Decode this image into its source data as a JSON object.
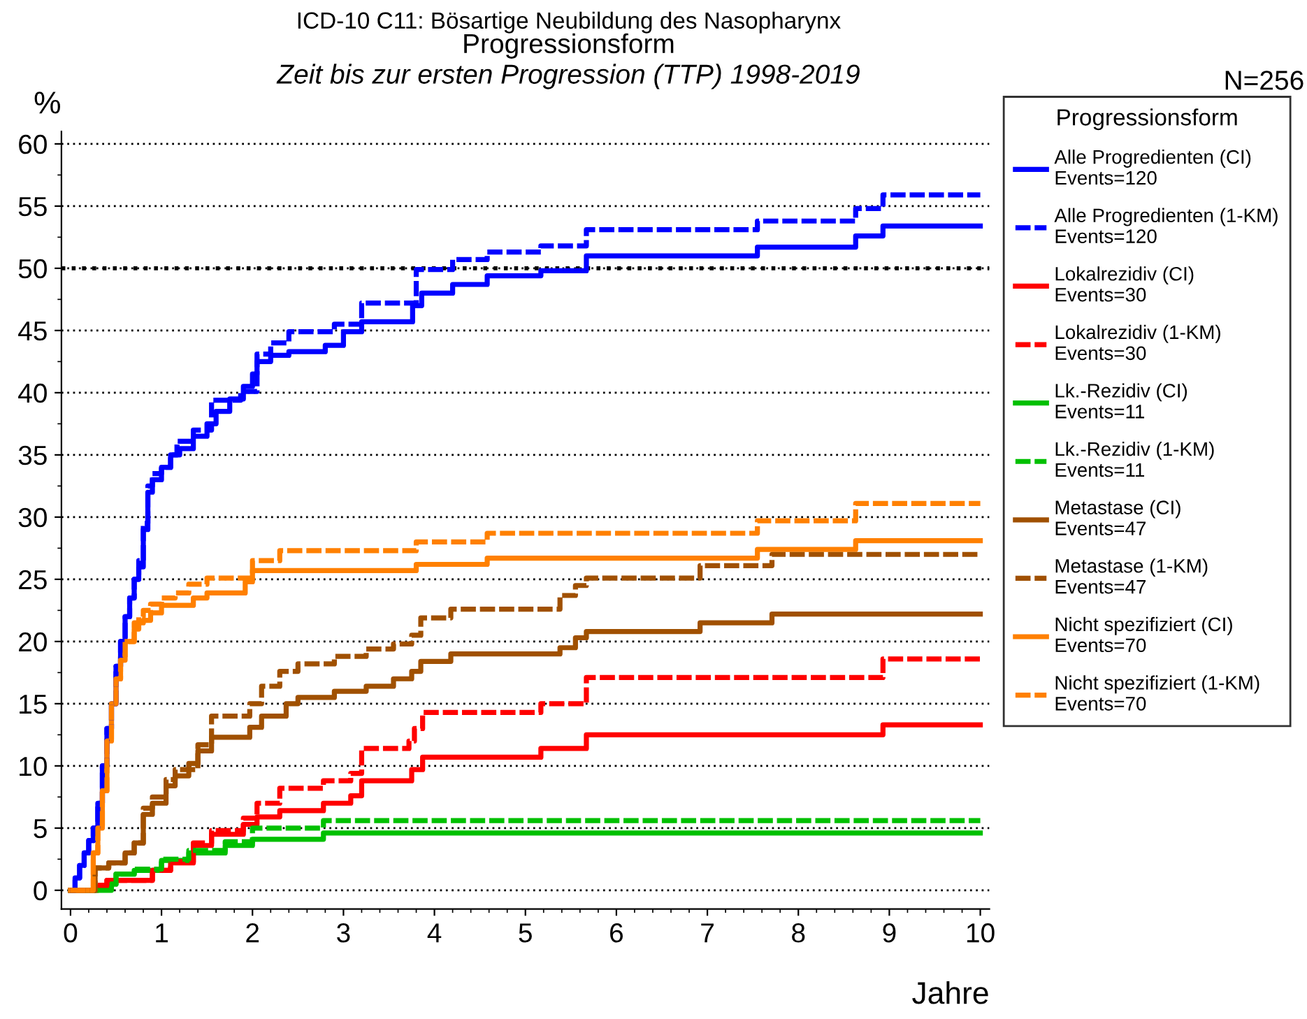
{
  "chart_data": {
    "type": "step",
    "title": "ICD-10 C11: Bösartige Neubildung des Nasopharynx",
    "subtitle": "Zeit bis zur ersten Progression (TTP) 1998-2019",
    "annotations": [
      "Progressionsform",
      "N=256"
    ],
    "xlabel": "Jahre",
    "ylabel": "%",
    "legend_title": "Progressionsform",
    "legend": "right",
    "grid": "y",
    "xlim": [
      -0.1,
      10.1
    ],
    "ylim": [
      -1.5,
      61
    ],
    "xticks": [
      0,
      1,
      2,
      3,
      4,
      5,
      6,
      7,
      8,
      9,
      10
    ],
    "yticks": [
      0,
      5,
      10,
      15,
      20,
      25,
      30,
      35,
      40,
      45,
      50,
      55,
      60
    ],
    "ref_lines": [
      {
        "axis": "y",
        "value": 50,
        "color": "#000000",
        "line_style": "dotted"
      }
    ],
    "series": [
      {
        "name": "Alle Progredienten (CI)\nEvents=120",
        "color": "#0000ff",
        "line_style": "solid",
        "x": [
          0,
          0.05,
          0.1,
          0.15,
          0.2,
          0.25,
          0.3,
          0.35,
          0.4,
          0.45,
          0.5,
          0.55,
          0.6,
          0.65,
          0.7,
          0.75,
          0.8,
          0.85,
          0.9,
          1.0,
          1.1,
          1.2,
          1.35,
          1.5,
          1.6,
          1.75,
          1.9,
          2.0,
          2.05,
          2.2,
          2.4,
          2.8,
          3.0,
          3.2,
          3.76,
          3.86,
          4.2,
          4.58,
          5.17,
          5.67,
          7.55,
          8.63,
          8.93,
          10
        ],
        "values": [
          0,
          1,
          2,
          3,
          4,
          5,
          7,
          10,
          13,
          15,
          18,
          20,
          22,
          23.5,
          25,
          26,
          29,
          32,
          33,
          34,
          35,
          35.5,
          36.5,
          37.5,
          38.5,
          39.5,
          40.5,
          41.5,
          42.5,
          43,
          43.3,
          43.8,
          44.9,
          45.7,
          47,
          48,
          48.7,
          49.4,
          49.8,
          51.0,
          51.7,
          52.6,
          53.4,
          53.4
        ]
      },
      {
        "name": "Alle Progredienten (1-KM)\nEvents=120",
        "color": "#0000ff",
        "line_style": "dashed",
        "x": [
          0,
          0.05,
          0.1,
          0.15,
          0.2,
          0.25,
          0.3,
          0.35,
          0.4,
          0.45,
          0.5,
          0.55,
          0.6,
          0.65,
          0.7,
          0.75,
          0.8,
          0.85,
          0.9,
          1.0,
          1.1,
          1.17,
          1.35,
          1.55,
          1.87,
          2.05,
          2.2,
          2.4,
          2.9,
          3.2,
          3.8,
          4.2,
          4.58,
          5.17,
          5.67,
          7.55,
          8.63,
          8.93,
          10
        ],
        "values": [
          0,
          1,
          2,
          3,
          4,
          5,
          7,
          10,
          13,
          15,
          18,
          20,
          22,
          23.5,
          25,
          26.5,
          29.5,
          32.5,
          33.5,
          34,
          35,
          36.1,
          37,
          39.4,
          40.1,
          43.1,
          44,
          44.9,
          45.5,
          47.2,
          49.9,
          50.7,
          51.3,
          51.8,
          53.1,
          53.8,
          54.8,
          55.9,
          55.9
        ]
      },
      {
        "name": "Lokalrezidiv (CI)\nEvents=30",
        "color": "#ff0000",
        "line_style": "solid",
        "x": [
          0,
          0.3,
          0.4,
          0.9,
          1.1,
          1.35,
          1.55,
          1.9,
          2.05,
          2.3,
          2.78,
          3.08,
          3.2,
          3.75,
          3.87,
          5.17,
          5.67,
          8.93,
          10
        ],
        "values": [
          0,
          0.3,
          0.8,
          1.6,
          2.2,
          3.6,
          4.5,
          5.3,
          5.9,
          6.4,
          7.0,
          7.6,
          8.8,
          9.7,
          10.7,
          11.4,
          12.5,
          13.3,
          13.3
        ]
      },
      {
        "name": "Lokalrezidiv (1-KM)\nEvents=30",
        "color": "#ff0000",
        "line_style": "dashed",
        "x": [
          0.3,
          0.4,
          0.9,
          1.1,
          1.35,
          1.55,
          1.9,
          2.05,
          2.3,
          2.78,
          3.08,
          3.2,
          3.72,
          3.78,
          3.87,
          5.17,
          5.67,
          8.93,
          10
        ],
        "values": [
          0.4,
          0.8,
          1.6,
          2.3,
          3.8,
          4.8,
          5.8,
          7.0,
          8.2,
          8.8,
          9.4,
          11.4,
          12.0,
          13.0,
          14.3,
          15.0,
          17.1,
          18.6,
          18.6
        ]
      },
      {
        "name": "Lk.-Rezidiv (CI)\nEvents=11",
        "color": "#00c000",
        "line_style": "solid",
        "x": [
          0,
          0.45,
          0.5,
          0.7,
          1.0,
          1.3,
          1.7,
          2.0,
          2.78,
          10
        ],
        "values": [
          0,
          0.5,
          1.3,
          1.6,
          2.4,
          3.0,
          3.6,
          4.1,
          4.6,
          4.6
        ]
      },
      {
        "name": "Lk.-Rezidiv (1-KM)\nEvents=11",
        "color": "#00c000",
        "line_style": "dashed",
        "x": [
          0.45,
          0.5,
          0.7,
          1.0,
          1.3,
          1.7,
          2.0,
          2.78,
          10
        ],
        "values": [
          0.5,
          1.3,
          1.7,
          2.5,
          3.2,
          3.9,
          5.0,
          5.6,
          5.6
        ]
      },
      {
        "name": "Metastase (CI)\nEvents=47",
        "color": "#a05000",
        "line_style": "solid",
        "x": [
          0,
          0.27,
          0.42,
          0.6,
          0.7,
          0.8,
          0.9,
          1.05,
          1.15,
          1.3,
          1.4,
          1.55,
          1.97,
          2.1,
          2.37,
          2.5,
          2.9,
          3.25,
          3.55,
          3.75,
          3.85,
          4.18,
          5.38,
          5.55,
          5.67,
          6.92,
          7.71,
          10
        ],
        "values": [
          0,
          1.8,
          2.2,
          3.0,
          3.8,
          6.1,
          7.0,
          8.4,
          9.2,
          10.2,
          11.2,
          12.3,
          13.1,
          14.0,
          15.0,
          15.5,
          16.0,
          16.4,
          17.0,
          17.6,
          18.4,
          19.0,
          19.5,
          20.3,
          20.8,
          21.5,
          22.2,
          22.2
        ]
      },
      {
        "name": "Metastase (1-KM)\nEvents=47",
        "color": "#a05000",
        "line_style": "dashed",
        "x": [
          0,
          0.27,
          0.42,
          0.6,
          0.7,
          0.8,
          0.9,
          1.05,
          1.15,
          1.4,
          1.55,
          1.97,
          2.1,
          2.3,
          2.5,
          2.9,
          3.25,
          3.55,
          3.75,
          3.85,
          4.18,
          5.38,
          5.55,
          5.67,
          6.92,
          7.71,
          10
        ],
        "values": [
          0,
          1.8,
          2.2,
          3.0,
          3.8,
          6.6,
          7.5,
          8.9,
          9.7,
          11.7,
          14.0,
          15.0,
          16.4,
          17.6,
          18.2,
          18.8,
          19.4,
          19.8,
          20.5,
          21.9,
          22.6,
          23.7,
          24.5,
          25.1,
          26.1,
          27.0,
          27.0
        ]
      },
      {
        "name": "Nicht spezifiziert (CI)\nEvents=70",
        "color": "#ff8000",
        "line_style": "solid",
        "x": [
          0,
          0.25,
          0.3,
          0.35,
          0.4,
          0.45,
          0.5,
          0.55,
          0.6,
          0.7,
          0.75,
          0.8,
          0.88,
          1.0,
          1.35,
          1.5,
          1.92,
          2.0,
          3.8,
          4.58,
          7.55,
          8.63,
          10
        ],
        "values": [
          0,
          3,
          5,
          8,
          12,
          15,
          17,
          18.5,
          20,
          21,
          21.5,
          21.7,
          22.3,
          22.9,
          23.5,
          23.9,
          24.8,
          25.7,
          26.2,
          26.7,
          27.4,
          28.1,
          28.1
        ]
      },
      {
        "name": "Nicht spezifiziert (1-KM)\nEvents=70",
        "color": "#ff8000",
        "line_style": "dashed",
        "x": [
          0,
          0.25,
          0.3,
          0.35,
          0.4,
          0.45,
          0.5,
          0.55,
          0.6,
          0.7,
          0.75,
          0.8,
          0.88,
          1.0,
          1.15,
          1.3,
          1.5,
          2.0,
          2.3,
          3.8,
          4.58,
          7.55,
          8.63,
          10
        ],
        "values": [
          0,
          3,
          5,
          8,
          12,
          15,
          17,
          18.5,
          20,
          21.5,
          22,
          22.5,
          23,
          23.5,
          23.9,
          24.6,
          25.1,
          26.5,
          27.3,
          28.0,
          28.7,
          29.7,
          31.1,
          31.1
        ]
      }
    ]
  }
}
